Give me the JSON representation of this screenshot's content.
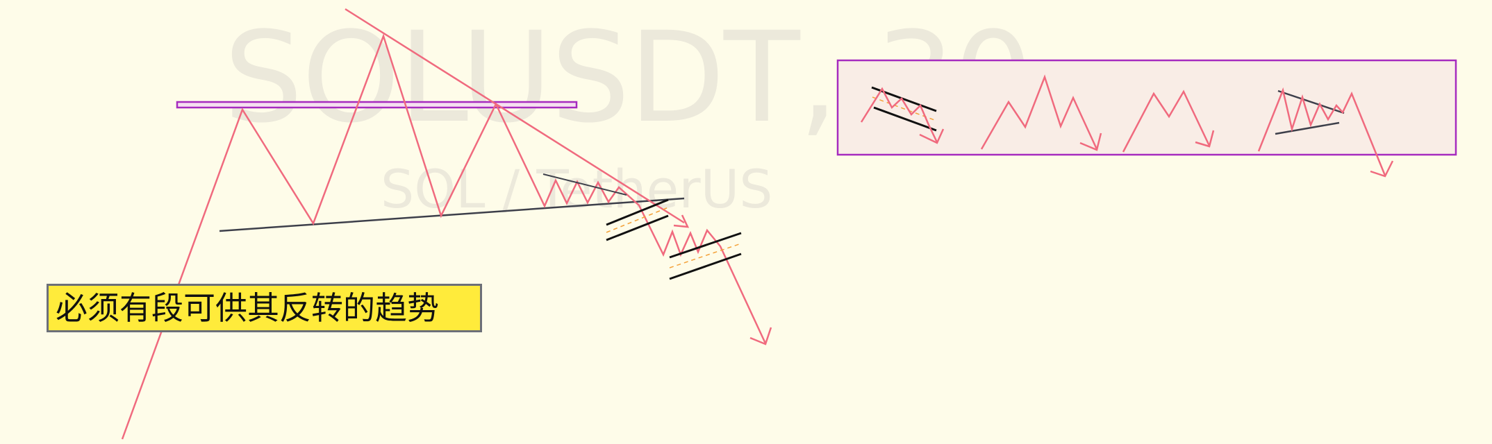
{
  "watermark": {
    "symbol": "SOLUSDT, 30",
    "pair": "SOL / TetherUS"
  },
  "note": {
    "text": "必须有段可供其反转的趋势"
  },
  "colors": {
    "background": "#fefce9",
    "price_path": "#f06a7e",
    "resistance_band": "#a62bbf",
    "pattern_box_fill": "#f9ede6",
    "trendline": "#3d3f4a",
    "channel": "#111111",
    "channel_mid": "#f4a23a",
    "note_fill": "#ffeb3b",
    "note_border": "#6c6f78"
  }
}
